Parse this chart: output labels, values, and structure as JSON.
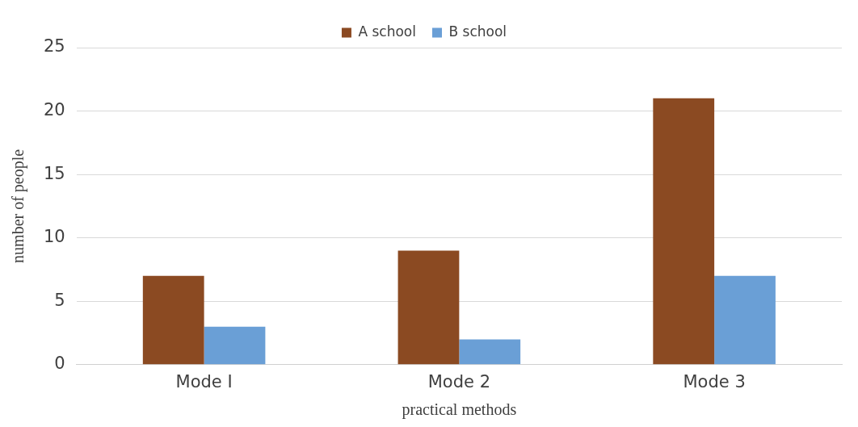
{
  "chart_data": {
    "type": "bar",
    "xlabel": "practical methods",
    "ylabel": "number of people",
    "categories": [
      "Mode I",
      "Mode 2",
      "Mode 3"
    ],
    "series": [
      {
        "name": "A school",
        "color": "#8b4a22",
        "values": [
          7,
          9,
          21
        ]
      },
      {
        "name": "B school",
        "color": "#6a9fd6",
        "values": [
          3,
          2,
          7
        ]
      }
    ],
    "ylim": [
      0,
      25
    ],
    "yticks": [
      0,
      5,
      10,
      15,
      20,
      25
    ],
    "grid": "y",
    "legend": "top"
  }
}
